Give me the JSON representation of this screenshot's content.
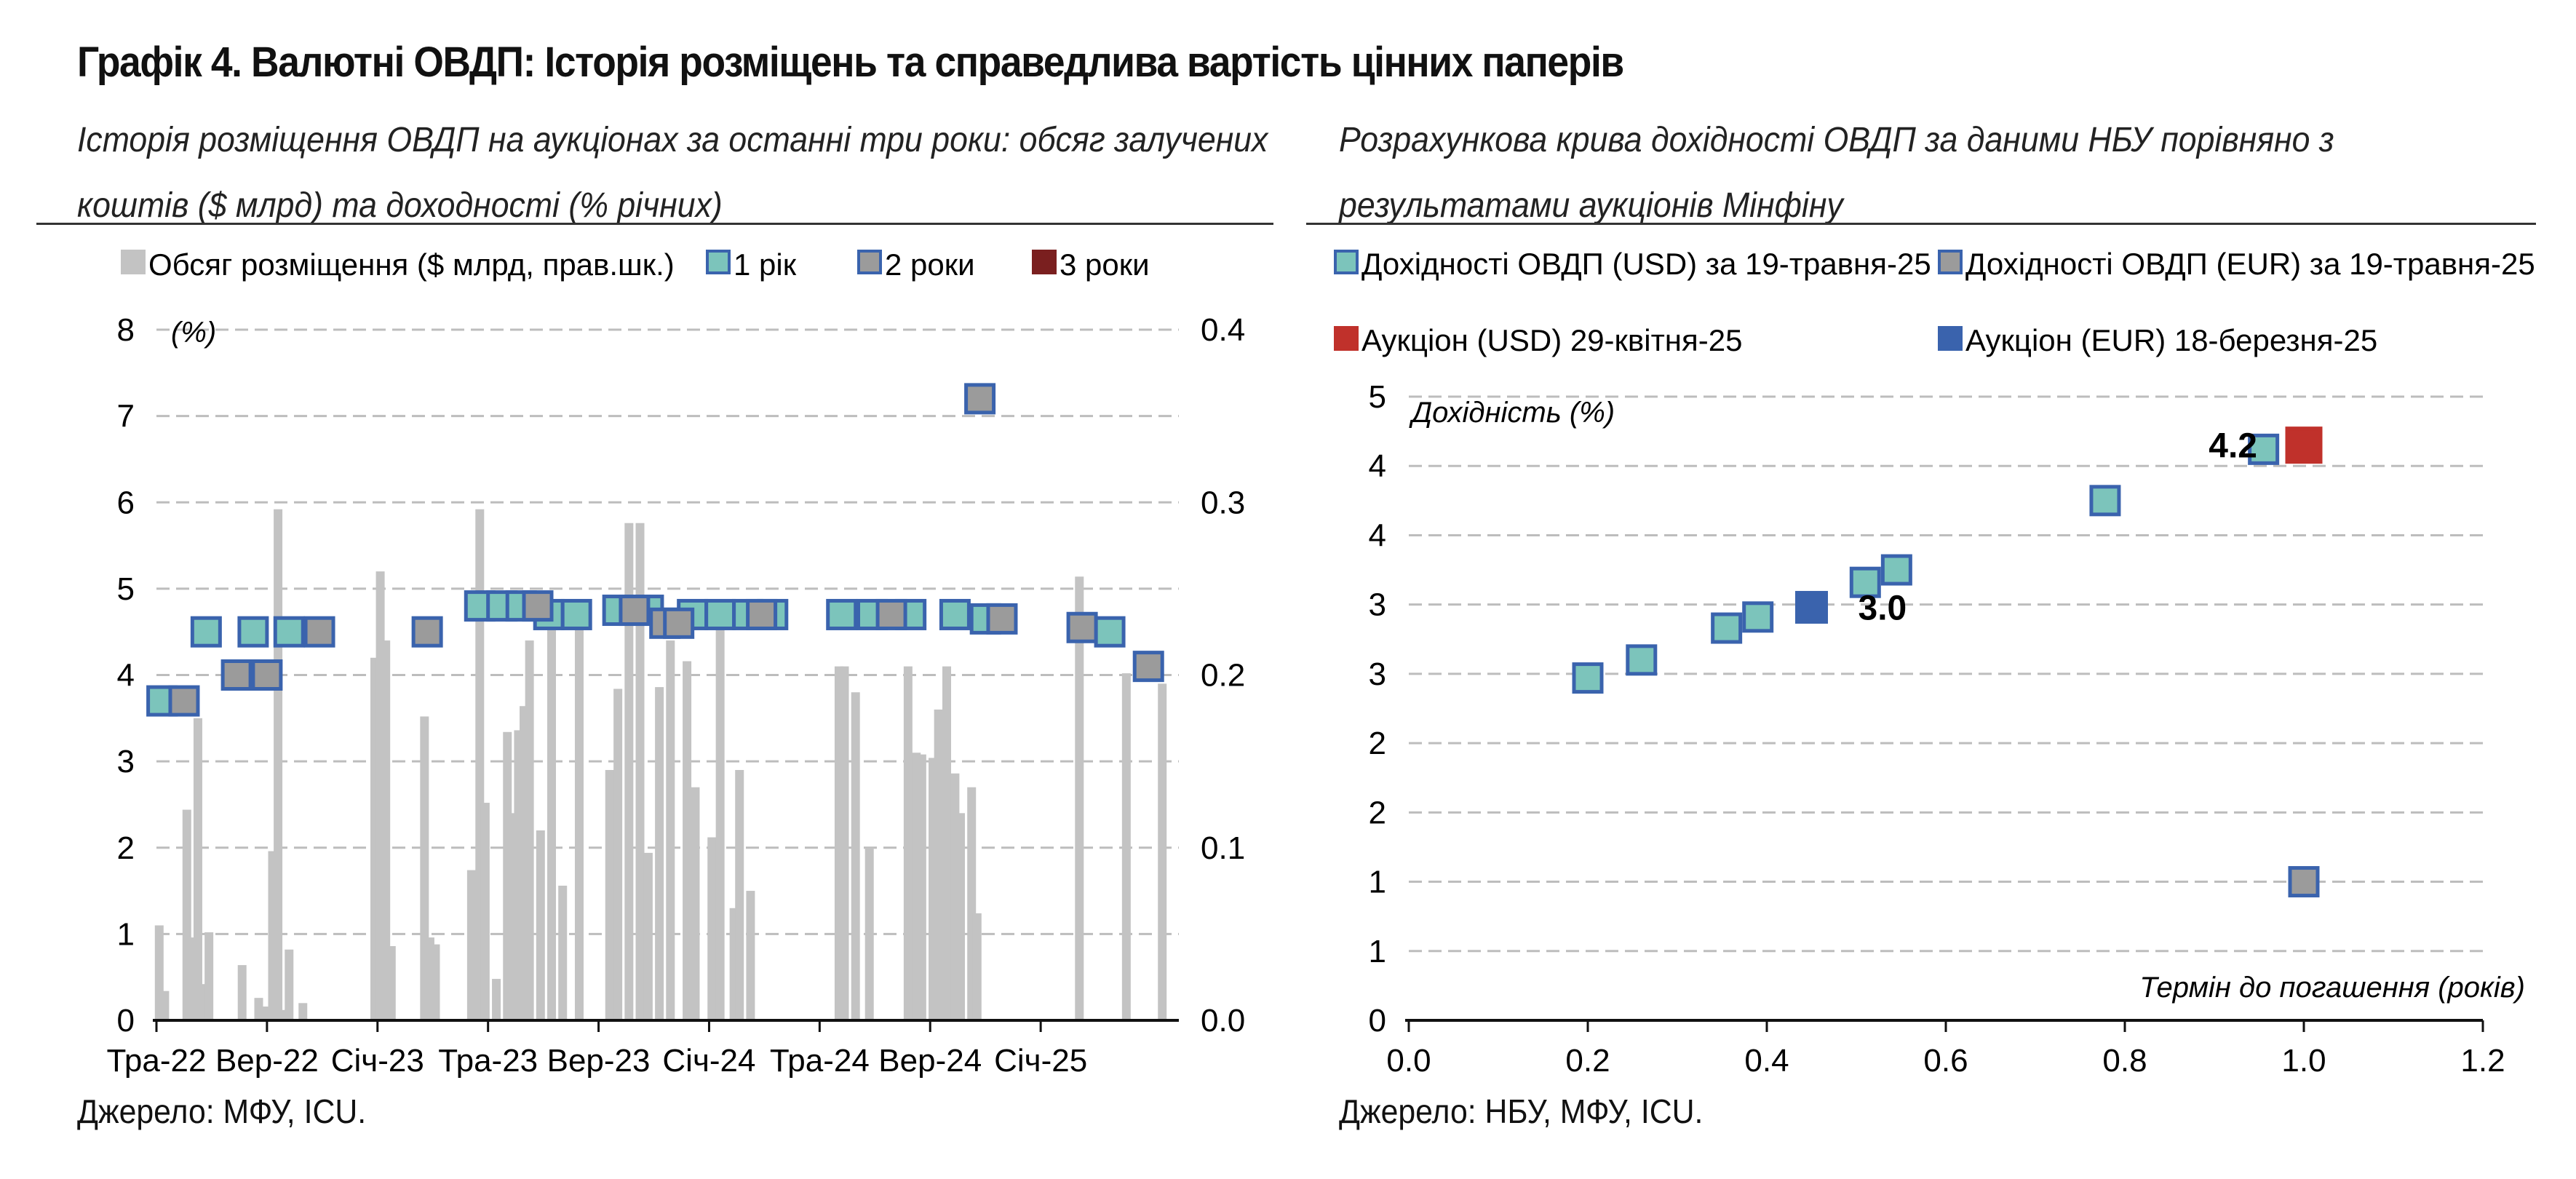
{
  "title": "Графік 4. Валютні ОВДП: Історія розміщень та справедлива вартість цінних паперів",
  "left_panel": {
    "subtitle_line1": "Історія розміщення ОВДП на аукціонах за останні три роки: обсяг залучених",
    "subtitle_line2": "коштів ($ млрд) та доходності (% річних)",
    "source": "Джерело: МФУ, ICU."
  },
  "right_panel": {
    "subtitle_line1": "Розрахункова крива дохідності ОВДП за даними НБУ порівняно з",
    "subtitle_line2": "результатами аукціонів Мінфіну",
    "source": "Джерело: НБУ, МФУ, ICU."
  },
  "colors": {
    "bar": "#c3c3c3",
    "one_year": "#7cc4bb",
    "two_year": "#9b9b9b",
    "three_year": "#7a1f1f",
    "marker_border": "#3a63ad",
    "auction_usd": "#c0312b",
    "auction_eur": "#3a63ad",
    "grid": "#bdbdbd",
    "axis": "#111111"
  },
  "chart_data": [
    {
      "type": "bar+scatter",
      "legend": [
        "Обсяг розміщення ($ млрд, прав.шк.)",
        "1 рік",
        "2 роки",
        "3 роки"
      ],
      "ylabel": "(%)",
      "ylim": [
        0,
        8
      ],
      "y_ticks": [
        "0",
        "1",
        "2",
        "3",
        "4",
        "5",
        "6",
        "7",
        "8"
      ],
      "y2lim": [
        0,
        0.4
      ],
      "y2_ticks": [
        "0.0",
        "0.1",
        "0.2",
        "0.3",
        "0.4"
      ],
      "x_ticks": [
        "Тра-22",
        "Вер-22",
        "Січ-23",
        "Тра-23",
        "Вер-23",
        "Січ-24",
        "Тра-24",
        "Вер-24",
        "Січ-25"
      ],
      "x_tick_months": [
        0,
        4,
        8,
        12,
        16,
        20,
        24,
        28,
        32
      ],
      "xlim": [
        0,
        37
      ],
      "volume_bars": [
        [
          0.1,
          0.055
        ],
        [
          0.3,
          0.017
        ],
        [
          1.1,
          0.122
        ],
        [
          1.3,
          0.048
        ],
        [
          1.5,
          0.175
        ],
        [
          1.7,
          0.021
        ],
        [
          1.9,
          0.051
        ],
        [
          3.1,
          0.032
        ],
        [
          3.7,
          0.013
        ],
        [
          4.0,
          0.008
        ],
        [
          4.2,
          0.098
        ],
        [
          4.4,
          0.296
        ],
        [
          4.6,
          0.006
        ],
        [
          4.8,
          0.041
        ],
        [
          5.3,
          0.01
        ],
        [
          7.9,
          0.21
        ],
        [
          8.1,
          0.26
        ],
        [
          8.3,
          0.22
        ],
        [
          8.5,
          0.043
        ],
        [
          9.7,
          0.176
        ],
        [
          9.9,
          0.048
        ],
        [
          10.1,
          0.044
        ],
        [
          11.4,
          0.087
        ],
        [
          11.7,
          0.296
        ],
        [
          11.9,
          0.126
        ],
        [
          12.3,
          0.024
        ],
        [
          12.7,
          0.167
        ],
        [
          12.9,
          0.12
        ],
        [
          13.1,
          0.168
        ],
        [
          13.3,
          0.182
        ],
        [
          13.5,
          0.22
        ],
        [
          13.9,
          0.11
        ],
        [
          14.3,
          0.226
        ],
        [
          14.7,
          0.078
        ],
        [
          15.3,
          0.24
        ],
        [
          16.4,
          0.145
        ],
        [
          16.7,
          0.192
        ],
        [
          17.1,
          0.288
        ],
        [
          17.5,
          0.288
        ],
        [
          17.8,
          0.097
        ],
        [
          18.2,
          0.193
        ],
        [
          18.6,
          0.22
        ],
        [
          19.2,
          0.208
        ],
        [
          19.5,
          0.135
        ],
        [
          20.1,
          0.106
        ],
        [
          20.4,
          0.236
        ],
        [
          20.9,
          0.065
        ],
        [
          21.1,
          0.145
        ],
        [
          21.5,
          0.075
        ],
        [
          24.7,
          0.205
        ],
        [
          24.9,
          0.205
        ],
        [
          25.3,
          0.19
        ],
        [
          25.8,
          0.1
        ],
        [
          27.2,
          0.205
        ],
        [
          27.5,
          0.155
        ],
        [
          27.7,
          0.154
        ],
        [
          28.1,
          0.152
        ],
        [
          28.3,
          0.18
        ],
        [
          28.6,
          0.205
        ],
        [
          28.9,
          0.143
        ],
        [
          29.1,
          0.12
        ],
        [
          29.5,
          0.135
        ],
        [
          29.7,
          0.062
        ],
        [
          33.4,
          0.257
        ],
        [
          35.1,
          0.201
        ],
        [
          36.4,
          0.195
        ]
      ],
      "series": [
        {
          "name": "1 рік",
          "points": [
            [
              0.2,
              3.7
            ],
            [
              1.8,
              4.5
            ],
            [
              3.5,
              4.5
            ],
            [
              4.8,
              4.5
            ],
            [
              11.7,
              4.8
            ],
            [
              12.5,
              4.8
            ],
            [
              13.2,
              4.8
            ],
            [
              14.2,
              4.7
            ],
            [
              15.2,
              4.7
            ],
            [
              16.7,
              4.75
            ],
            [
              17.8,
              4.75
            ],
            [
              19.4,
              4.7
            ],
            [
              20.4,
              4.7
            ],
            [
              21.4,
              4.7
            ],
            [
              22.3,
              4.7
            ],
            [
              24.8,
              4.7
            ],
            [
              25.9,
              4.7
            ],
            [
              27.3,
              4.7
            ],
            [
              28.9,
              4.7
            ],
            [
              30.0,
              4.65
            ],
            [
              34.5,
              4.5
            ]
          ]
        },
        {
          "name": "2 роки",
          "points": [
            [
              1.0,
              3.7
            ],
            [
              2.9,
              4.0
            ],
            [
              4.0,
              4.0
            ],
            [
              5.9,
              4.5
            ],
            [
              9.8,
              4.5
            ],
            [
              13.8,
              4.8
            ],
            [
              17.3,
              4.75
            ],
            [
              18.4,
              4.6
            ],
            [
              18.9,
              4.6
            ],
            [
              21.9,
              4.7
            ],
            [
              26.6,
              4.7
            ],
            [
              29.8,
              7.2
            ],
            [
              30.6,
              4.65
            ],
            [
              33.5,
              4.55
            ],
            [
              35.9,
              4.1
            ]
          ]
        },
        {
          "name": "3 роки",
          "points": []
        }
      ]
    },
    {
      "type": "scatter",
      "legend": [
        "Дохідності ОВДП (USD) за 19-травня-25",
        "Дохідності ОВДП (EUR) за 19-травня-25",
        "Аукціон (USD) 29-квітня-25",
        "Аукціон (EUR) 18-березня-25"
      ],
      "ylabel": "Дохідність (%)",
      "xlabel": "Термін до погашення (років)",
      "xlim": [
        0,
        1.2
      ],
      "x_ticks": [
        "0.0",
        "0.2",
        "0.4",
        "0.6",
        "0.8",
        "1.0",
        "1.2"
      ],
      "ylim": [
        0,
        4.5
      ],
      "y_ticks": [
        "0",
        "1",
        "1",
        "2",
        "2",
        "3",
        "3",
        "4",
        "4",
        "5"
      ],
      "series": [
        {
          "name": "Дохідності ОВДП (USD) за 19-травня-25",
          "points": [
            [
              0.2,
              2.47
            ],
            [
              0.26,
              2.6
            ],
            [
              0.355,
              2.83
            ],
            [
              0.39,
              2.91
            ],
            [
              0.51,
              3.16
            ],
            [
              0.545,
              3.25
            ],
            [
              0.778,
              3.75
            ],
            [
              0.955,
              4.12
            ]
          ]
        },
        {
          "name": "Дохідності ОВДП (EUR) за 19-травня-25",
          "points": [
            [
              1.0,
              1.0
            ]
          ]
        },
        {
          "name": "Аукціон (USD) 29-квітня-25",
          "points": [
            [
              1.0,
              4.15
            ]
          ],
          "label": "4.2"
        },
        {
          "name": "Аукціон (EUR) 18-березня-25",
          "points": [
            [
              0.45,
              2.98
            ]
          ],
          "label": "3.0"
        }
      ]
    }
  ]
}
